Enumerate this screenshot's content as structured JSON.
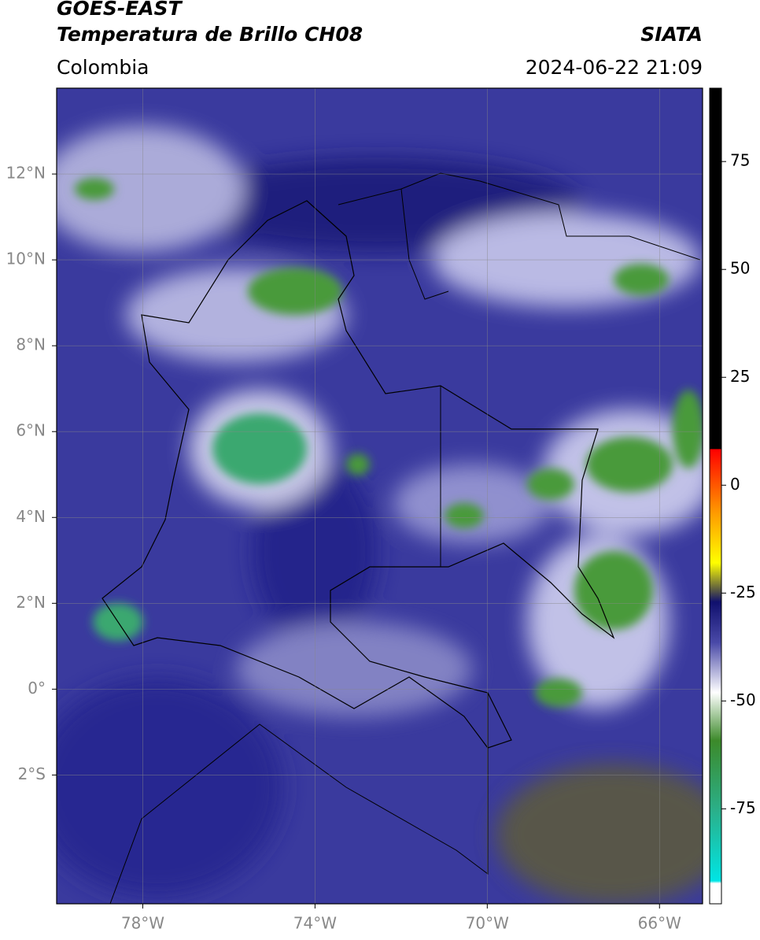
{
  "header": {
    "title": "GOES-EAST",
    "subtitle": "Temperatura de Brillo CH08",
    "region": "Colombia",
    "source": "SIATA",
    "datetime": "2024-06-22 21:09"
  },
  "map": {
    "xlim": [
      -80,
      -65
    ],
    "ylim": [
      -5,
      14
    ],
    "xticks": [
      {
        "value": -78,
        "label": "78°W"
      },
      {
        "value": -74,
        "label": "74°W"
      },
      {
        "value": -70,
        "label": "70°W"
      },
      {
        "value": -66,
        "label": "66°W"
      }
    ],
    "yticks": [
      {
        "value": 12,
        "label": "12°N"
      },
      {
        "value": 10,
        "label": "10°N"
      },
      {
        "value": 8,
        "label": "8°N"
      },
      {
        "value": 6,
        "label": "6°N"
      },
      {
        "value": 4,
        "label": "4°N"
      },
      {
        "value": 2,
        "label": "2°N"
      },
      {
        "value": 0,
        "label": "0°"
      },
      {
        "value": -2,
        "label": "2°S"
      }
    ],
    "grid": true
  },
  "colorbar": {
    "lim": [
      -97,
      92
    ],
    "ticks": [
      75,
      50,
      25,
      0,
      -25,
      -50,
      -75
    ]
  }
}
